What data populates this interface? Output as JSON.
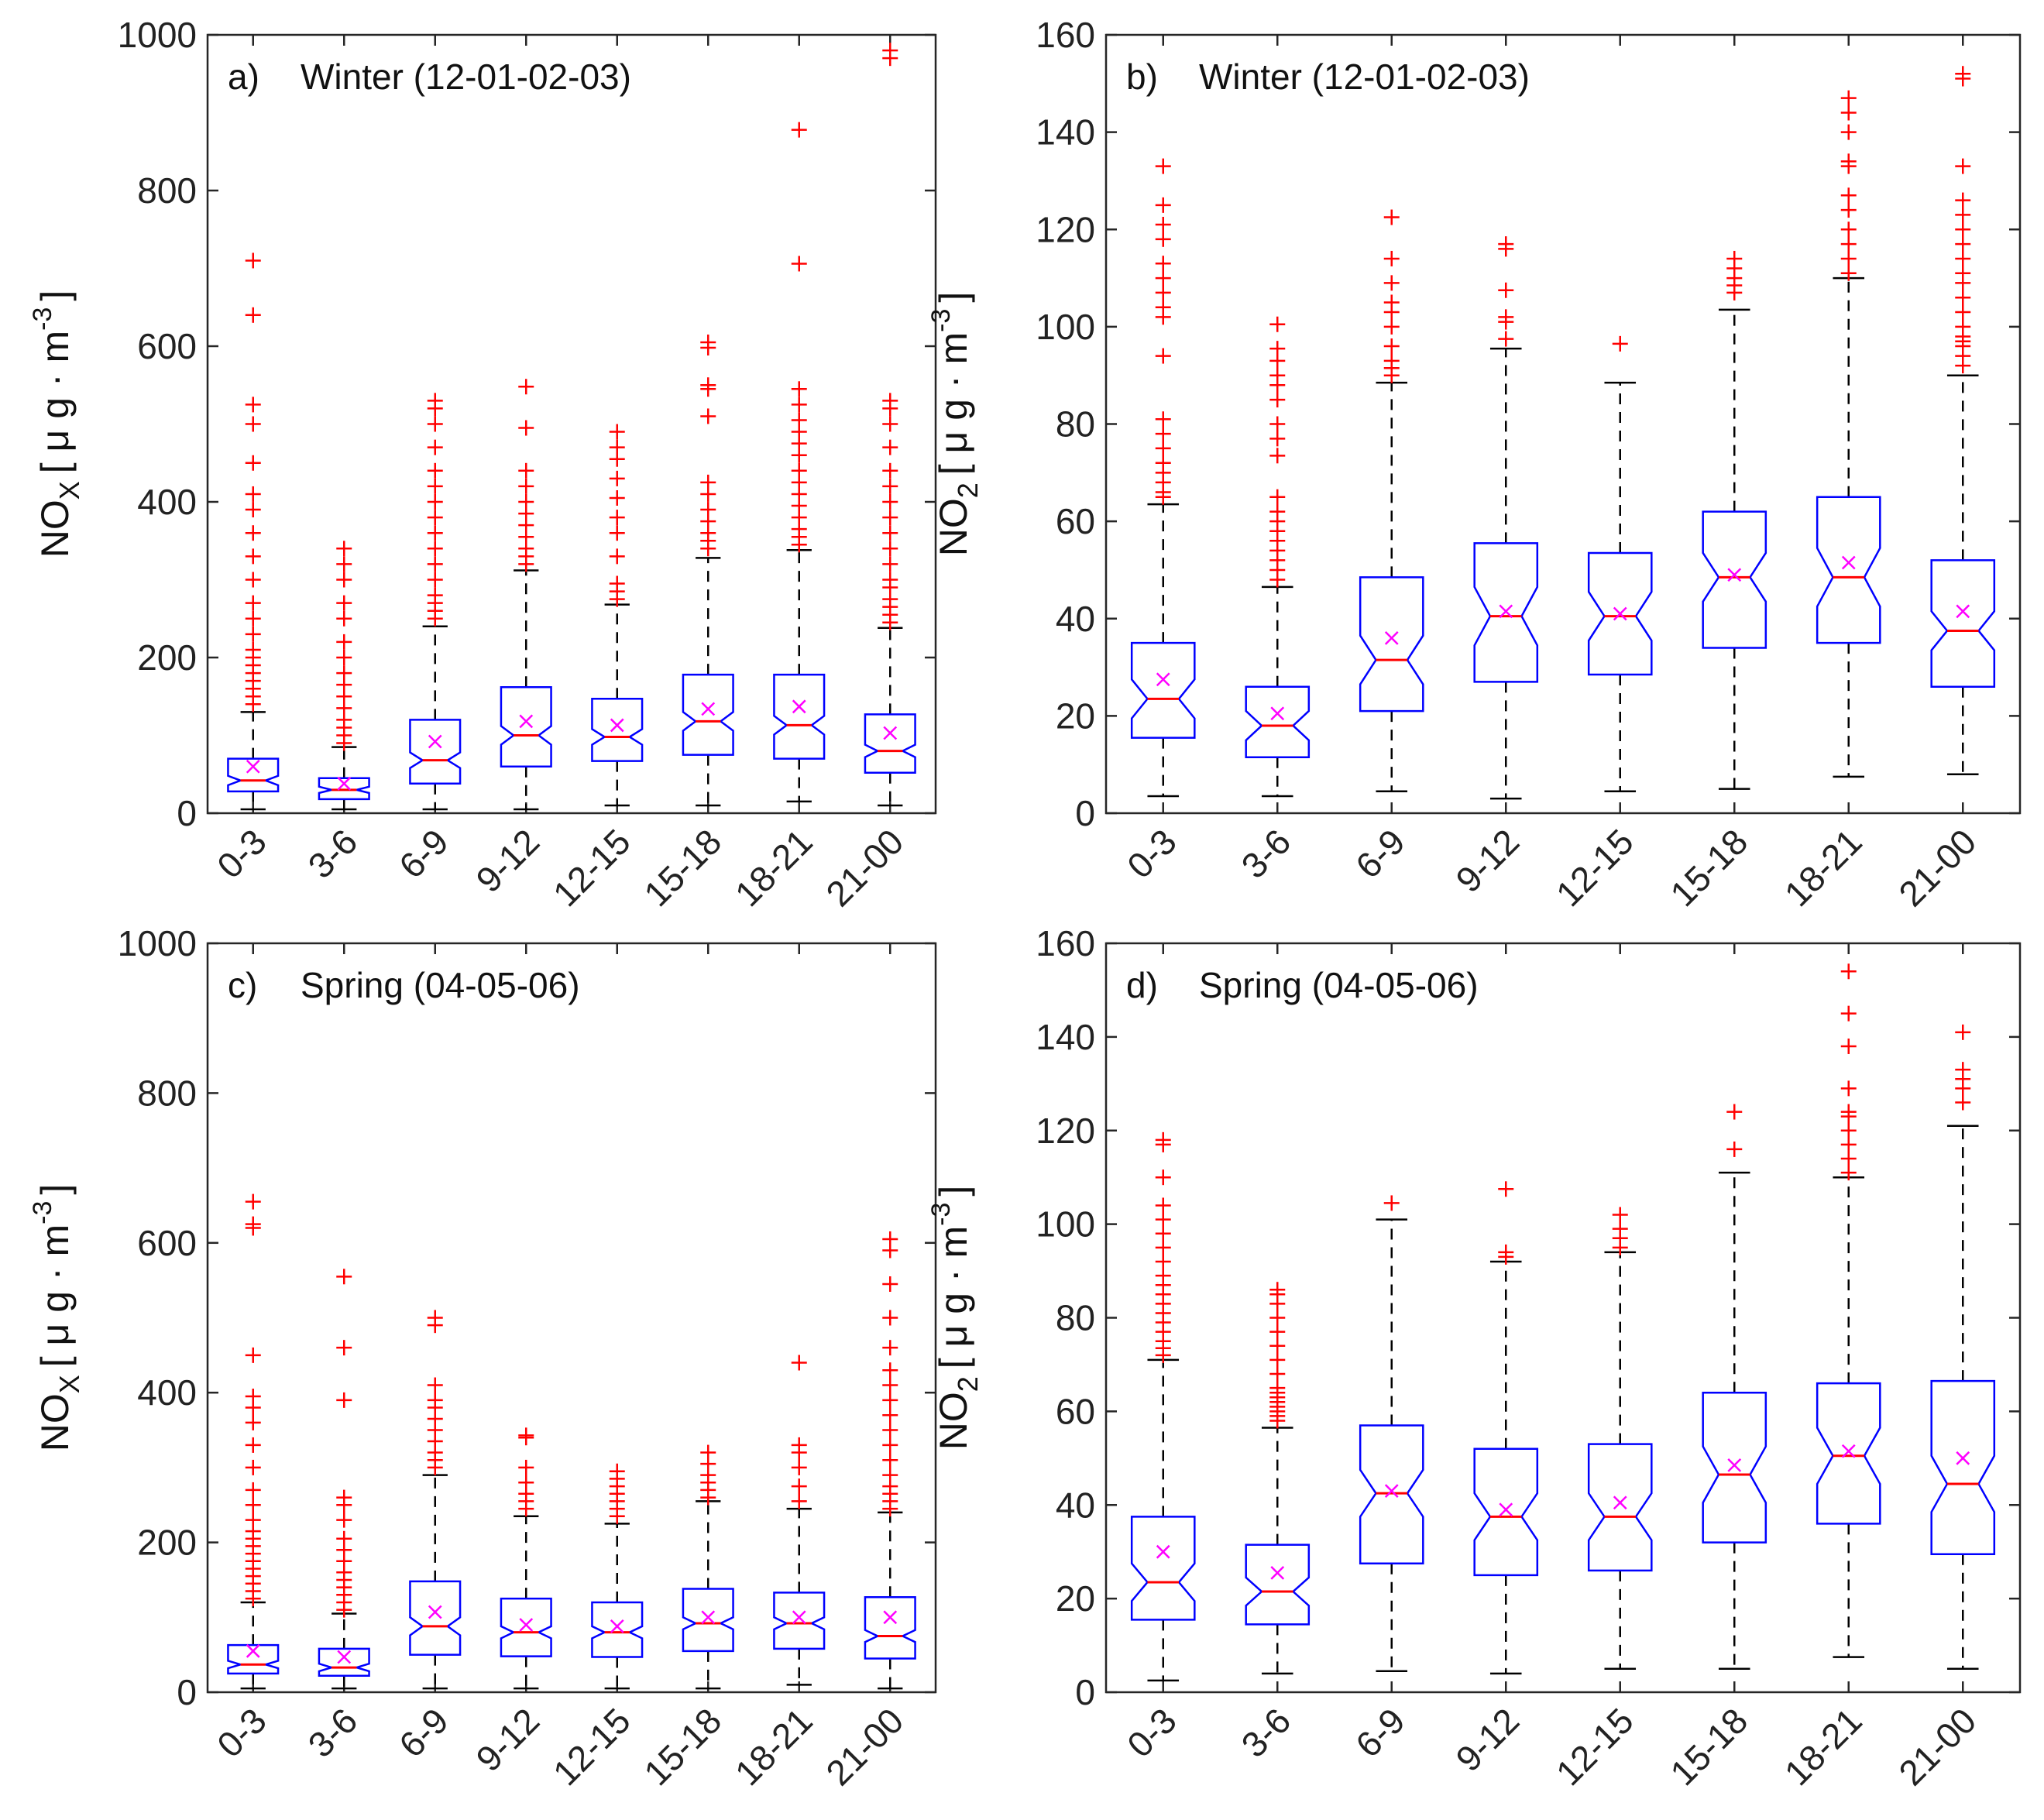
{
  "chart_data": [
    {
      "type": "boxplot",
      "panel_label": "a)",
      "title": "Winter (12-01-02-03)",
      "ylabel": {
        "main": "NO",
        "sub": "X",
        "unit": "[ μ g · m",
        "sup": "-3",
        "close": "]"
      },
      "ylim": [
        0,
        1000
      ],
      "yticks": [
        0,
        200,
        400,
        600,
        800,
        1000
      ],
      "categories": [
        "0-3",
        "3-6",
        "6-9",
        "9-12",
        "12-15",
        "15-18",
        "18-21",
        "21-00"
      ],
      "boxes": [
        {
          "whisker_low": 5,
          "q1": 28,
          "median": 42,
          "q3": 70,
          "whisker_high": 130,
          "notch": 6,
          "mean": 60,
          "outliers": [
            140,
            150,
            160,
            170,
            180,
            190,
            200,
            210,
            230,
            250,
            270,
            300,
            330,
            360,
            390,
            410,
            450,
            500,
            525,
            640,
            710
          ]
        },
        {
          "whisker_low": 5,
          "q1": 18,
          "median": 30,
          "q3": 45,
          "whisker_high": 85,
          "notch": 4,
          "mean": 38,
          "outliers": [
            90,
            100,
            110,
            120,
            135,
            150,
            165,
            180,
            200,
            220,
            250,
            270,
            300,
            320,
            340
          ]
        },
        {
          "whisker_low": 5,
          "q1": 38,
          "median": 68,
          "q3": 120,
          "whisker_high": 240,
          "notch": 10,
          "mean": 92,
          "outliers": [
            250,
            260,
            270,
            280,
            300,
            320,
            340,
            360,
            380,
            400,
            420,
            440,
            470,
            500,
            520,
            530
          ]
        },
        {
          "whisker_low": 5,
          "q1": 60,
          "median": 100,
          "q3": 162,
          "whisker_high": 312,
          "notch": 12,
          "mean": 118,
          "outliers": [
            320,
            330,
            340,
            355,
            370,
            385,
            400,
            420,
            440,
            495,
            548
          ]
        },
        {
          "whisker_low": 10,
          "q1": 67,
          "median": 98,
          "q3": 147,
          "whisker_high": 268,
          "notch": 10,
          "mean": 113,
          "outliers": [
            275,
            285,
            295,
            330,
            360,
            380,
            405,
            430,
            455,
            470,
            490
          ]
        },
        {
          "whisker_low": 10,
          "q1": 75,
          "median": 118,
          "q3": 178,
          "whisker_high": 328,
          "notch": 12,
          "mean": 134,
          "outliers": [
            340,
            350,
            360,
            375,
            390,
            410,
            425,
            510,
            545,
            550,
            598,
            605
          ]
        },
        {
          "whisker_low": 15,
          "q1": 70,
          "median": 113,
          "q3": 178,
          "whisker_high": 338,
          "notch": 12,
          "mean": 137,
          "outliers": [
            345,
            355,
            365,
            380,
            395,
            410,
            425,
            440,
            460,
            475,
            490,
            505,
            525,
            545,
            706,
            878
          ]
        },
        {
          "whisker_low": 10,
          "q1": 52,
          "median": 80,
          "q3": 127,
          "whisker_high": 238,
          "notch": 8,
          "mean": 103,
          "outliers": [
            245,
            255,
            265,
            275,
            290,
            300,
            320,
            340,
            360,
            380,
            400,
            420,
            440,
            470,
            500,
            520,
            530,
            970,
            980
          ]
        }
      ]
    },
    {
      "type": "boxplot",
      "panel_label": "b)",
      "title": "Winter (12-01-02-03)",
      "ylabel": {
        "main": "NO",
        "sub": "2",
        "unit": "[ μ g · m",
        "sup": "-3",
        "close": "]"
      },
      "ylim": [
        0,
        160
      ],
      "yticks": [
        0,
        20,
        40,
        60,
        80,
        100,
        120,
        140,
        160
      ],
      "categories": [
        "0-3",
        "3-6",
        "6-9",
        "9-12",
        "12-15",
        "15-18",
        "18-21",
        "21-00"
      ],
      "boxes": [
        {
          "whisker_low": 3.5,
          "q1": 15.5,
          "median": 23.5,
          "q3": 35,
          "whisker_high": 63.5,
          "notch": 4,
          "mean": 27.5,
          "outliers": [
            65,
            66,
            68,
            70,
            72,
            75,
            78,
            81,
            94,
            102,
            104,
            107,
            110,
            113,
            118,
            121,
            125,
            133
          ]
        },
        {
          "whisker_low": 3.5,
          "q1": 11.5,
          "median": 18,
          "q3": 26,
          "whisker_high": 46.5,
          "notch": 3,
          "mean": 20.5,
          "outliers": [
            48,
            50,
            52,
            54,
            56,
            58,
            60,
            62,
            65,
            73.5,
            77,
            80,
            85,
            88,
            90,
            93,
            95.5,
            100.5
          ]
        },
        {
          "whisker_low": 4.5,
          "q1": 21,
          "median": 31.5,
          "q3": 48.5,
          "whisker_high": 88.5,
          "notch": 5,
          "mean": 36,
          "outliers": [
            90,
            91.5,
            93,
            96,
            100,
            103,
            105,
            109,
            114,
            122.5
          ]
        },
        {
          "whisker_low": 3,
          "q1": 27,
          "median": 40.5,
          "q3": 55.5,
          "whisker_high": 95.5,
          "notch": 6,
          "mean": 41.5,
          "outliers": [
            97.5,
            101,
            102,
            107.5,
            116,
            117
          ]
        },
        {
          "whisker_low": 4.5,
          "q1": 28.5,
          "median": 40.5,
          "q3": 53.5,
          "whisker_high": 88.5,
          "notch": 5,
          "mean": 41,
          "outliers": [
            96.5
          ]
        },
        {
          "whisker_low": 5,
          "q1": 34,
          "median": 48.5,
          "q3": 62,
          "whisker_high": 103.5,
          "notch": 5,
          "mean": 49,
          "outliers": [
            107,
            108.5,
            110,
            112,
            114
          ]
        },
        {
          "whisker_low": 7.5,
          "q1": 35,
          "median": 48.5,
          "q3": 65,
          "whisker_high": 110,
          "notch": 6,
          "mean": 51.5,
          "outliers": [
            111,
            114,
            117,
            120,
            124,
            127,
            133,
            134,
            140,
            144,
            147
          ]
        },
        {
          "whisker_low": 8,
          "q1": 26,
          "median": 37.5,
          "q3": 52,
          "whisker_high": 90,
          "notch": 4,
          "mean": 41.5,
          "outliers": [
            92,
            94,
            96,
            97,
            98,
            100,
            103,
            106,
            109,
            111,
            114,
            117,
            120,
            123,
            126,
            133,
            151,
            152
          ]
        }
      ]
    },
    {
      "type": "boxplot",
      "panel_label": "c)",
      "title": "Spring (04-05-06)",
      "ylabel": {
        "main": "NO",
        "sub": "X",
        "unit": "[ μ g · m",
        "sup": "-3",
        "close": "]"
      },
      "ylim": [
        0,
        1000
      ],
      "yticks": [
        0,
        200,
        400,
        600,
        800,
        1000
      ],
      "categories": [
        "0-3",
        "3-6",
        "6-9",
        "9-12",
        "12-15",
        "15-18",
        "18-21",
        "21-00"
      ],
      "boxes": [
        {
          "whisker_low": 5,
          "q1": 25,
          "median": 37,
          "q3": 63,
          "whisker_high": 120,
          "notch": 5,
          "mean": 55,
          "outliers": [
            125,
            135,
            145,
            155,
            165,
            175,
            185,
            195,
            205,
            215,
            230,
            250,
            270,
            300,
            330,
            360,
            380,
            395,
            450,
            620,
            625,
            655
          ]
        },
        {
          "whisker_low": 5,
          "q1": 22,
          "median": 33,
          "q3": 58,
          "whisker_high": 105,
          "notch": 5,
          "mean": 47,
          "outliers": [
            110,
            120,
            130,
            140,
            150,
            160,
            175,
            190,
            205,
            230,
            250,
            260,
            390,
            460,
            555
          ]
        },
        {
          "whisker_low": 5,
          "q1": 50,
          "median": 88,
          "q3": 148,
          "whisker_high": 290,
          "notch": 12,
          "mean": 107,
          "outliers": [
            300,
            310,
            320,
            335,
            350,
            365,
            380,
            390,
            410,
            490,
            500
          ]
        },
        {
          "whisker_low": 5,
          "q1": 48,
          "median": 80,
          "q3": 125,
          "whisker_high": 235,
          "notch": 8,
          "mean": 90,
          "outliers": [
            245,
            255,
            265,
            280,
            300,
            340,
            343
          ]
        },
        {
          "whisker_low": 5,
          "q1": 47,
          "median": 80,
          "q3": 120,
          "whisker_high": 225,
          "notch": 8,
          "mean": 88,
          "outliers": [
            235,
            245,
            255,
            265,
            275,
            285,
            295
          ]
        },
        {
          "whisker_low": 5,
          "q1": 55,
          "median": 92,
          "q3": 138,
          "whisker_high": 255,
          "notch": 8,
          "mean": 100,
          "outliers": [
            260,
            270,
            280,
            290,
            305,
            320
          ]
        },
        {
          "whisker_low": 10,
          "q1": 58,
          "median": 92,
          "q3": 133,
          "whisker_high": 245,
          "notch": 8,
          "mean": 100,
          "outliers": [
            255,
            275,
            300,
            320,
            330,
            440
          ]
        },
        {
          "whisker_low": 5,
          "q1": 45,
          "median": 75,
          "q3": 127,
          "whisker_high": 240,
          "notch": 8,
          "mean": 100,
          "outliers": [
            245,
            255,
            265,
            275,
            290,
            310,
            330,
            350,
            370,
            390,
            410,
            430,
            460,
            500,
            545,
            590,
            605
          ]
        }
      ]
    },
    {
      "type": "boxplot",
      "panel_label": "d)",
      "title": "Spring (04-05-06)",
      "ylabel": {
        "main": "NO",
        "sub": "2",
        "unit": "[ μ g · m",
        "sup": "-3",
        "close": "]"
      },
      "ylim": [
        0,
        160
      ],
      "yticks": [
        0,
        20,
        40,
        60,
        80,
        100,
        120,
        140,
        160
      ],
      "categories": [
        "0-3",
        "3-6",
        "6-9",
        "9-12",
        "12-15",
        "15-18",
        "18-21",
        "21-00"
      ],
      "boxes": [
        {
          "whisker_low": 2.5,
          "q1": 15.5,
          "median": 23.5,
          "q3": 37.5,
          "whisker_high": 71,
          "notch": 4,
          "mean": 30,
          "outliers": [
            72,
            73.5,
            75,
            77,
            79,
            81,
            83,
            85,
            87,
            89,
            92,
            95,
            98,
            101,
            104,
            110,
            117,
            118
          ]
        },
        {
          "whisker_low": 4,
          "q1": 14.5,
          "median": 21.5,
          "q3": 31.5,
          "whisker_high": 56.5,
          "notch": 3,
          "mean": 25.5,
          "outliers": [
            58,
            59,
            60,
            61,
            62,
            63,
            64,
            65,
            68,
            71,
            74,
            77,
            80,
            83,
            85,
            86
          ]
        },
        {
          "whisker_low": 4.5,
          "q1": 27.5,
          "median": 42.5,
          "q3": 57,
          "whisker_high": 101,
          "notch": 5,
          "mean": 43,
          "outliers": [
            104.5
          ]
        },
        {
          "whisker_low": 4,
          "q1": 25,
          "median": 37.5,
          "q3": 52,
          "whisker_high": 92,
          "notch": 5,
          "mean": 39,
          "outliers": [
            93,
            94,
            107.5
          ]
        },
        {
          "whisker_low": 5,
          "q1": 26,
          "median": 37.5,
          "q3": 53,
          "whisker_high": 94,
          "notch": 5,
          "mean": 40.5,
          "outliers": [
            95,
            97,
            99,
            102
          ]
        },
        {
          "whisker_low": 5,
          "q1": 32,
          "median": 46.5,
          "q3": 64,
          "whisker_high": 111,
          "notch": 6,
          "mean": 48.5,
          "outliers": [
            116,
            124
          ]
        },
        {
          "whisker_low": 7.5,
          "q1": 36,
          "median": 50.5,
          "q3": 66,
          "whisker_high": 110,
          "notch": 6,
          "mean": 51.5,
          "outliers": [
            111,
            114,
            117,
            120,
            123,
            124,
            129,
            138,
            145,
            154
          ]
        },
        {
          "whisker_low": 5,
          "q1": 29.5,
          "median": 44.5,
          "q3": 66.5,
          "whisker_high": 121,
          "notch": 6,
          "mean": 50,
          "outliers": [
            126,
            129,
            131,
            133,
            141
          ]
        }
      ]
    }
  ],
  "colors": {
    "box": "#0000ff",
    "median": "#ff0000",
    "outlier": "#ff0000",
    "mean": "#ff00ff",
    "whisker": "#000000",
    "axis": "#262626"
  }
}
